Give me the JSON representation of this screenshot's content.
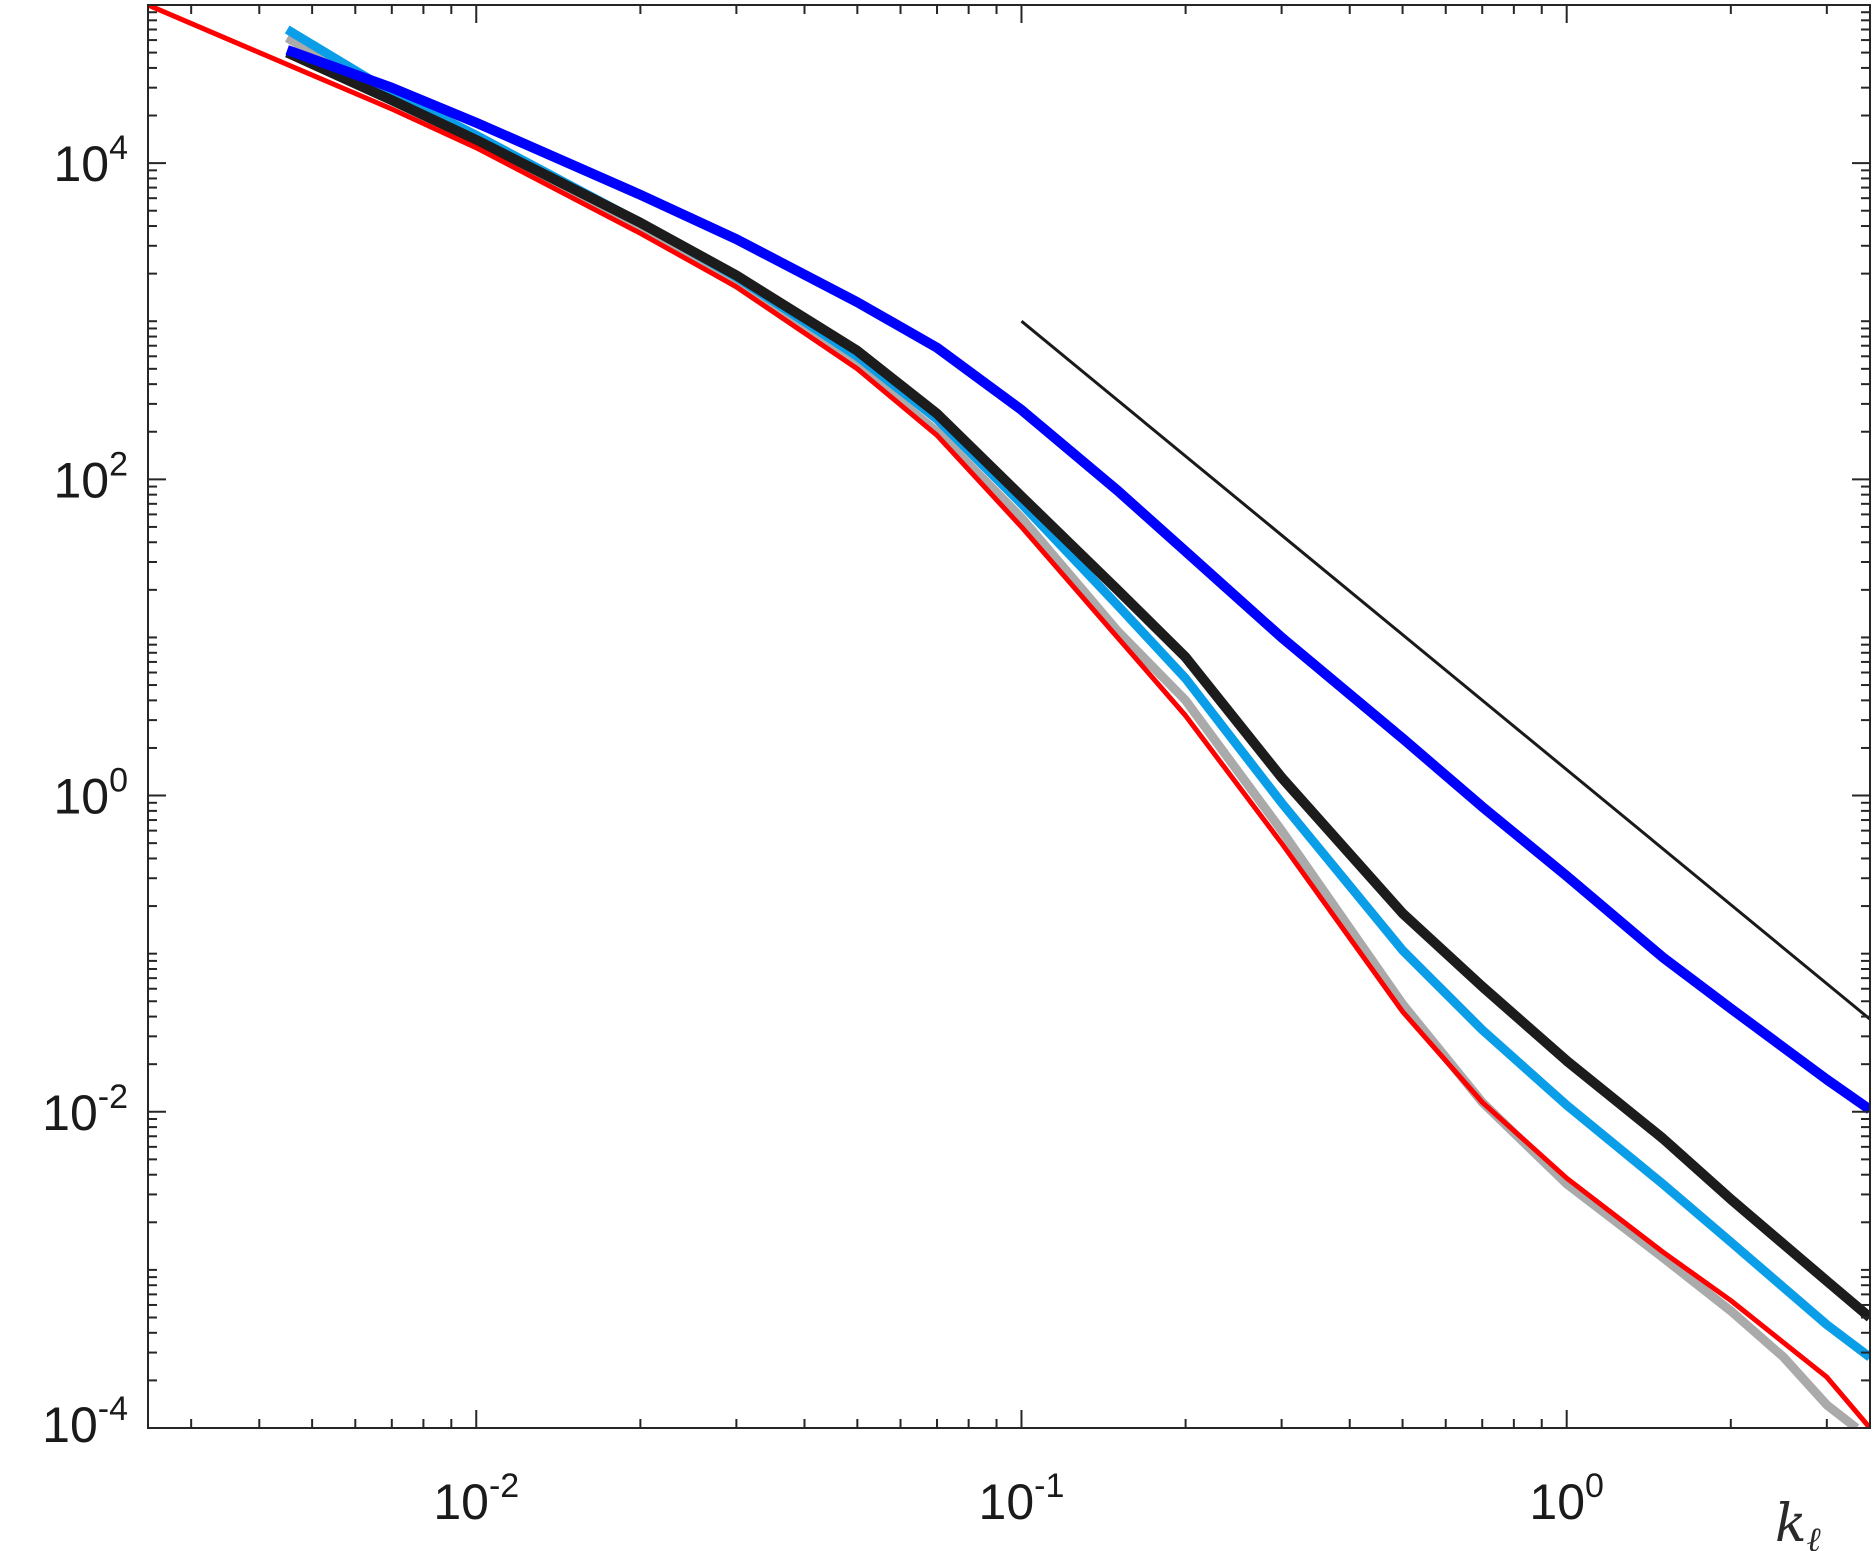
{
  "chart_data": {
    "type": "line",
    "title": "",
    "xlabel": "k",
    "xlabel_subscript": "ℓ",
    "ylabel": "",
    "xscale": "log",
    "yscale": "log",
    "xlim": [
      0.0025,
      3.6
    ],
    "ylim": [
      0.0001,
      100000
    ],
    "grid": false,
    "legend": "none",
    "x_ticks": [
      {
        "value": 0.01,
        "base": "10",
        "exp": "-2"
      },
      {
        "value": 0.1,
        "base": "10",
        "exp": "-1"
      },
      {
        "value": 1,
        "base": "10",
        "exp": "0"
      }
    ],
    "y_ticks": [
      {
        "value": 0.0001,
        "base": "10",
        "exp": "-4"
      },
      {
        "value": 0.01,
        "base": "10",
        "exp": "-2"
      },
      {
        "value": 1,
        "base": "10",
        "exp": "0"
      },
      {
        "value": 100,
        "base": "10",
        "exp": "2"
      },
      {
        "value": 10000,
        "base": "10",
        "exp": "4"
      }
    ],
    "series": [
      {
        "color": "#aaaaaa",
        "width": 9,
        "x": [
          0.0045,
          0.007,
          0.01,
          0.02,
          0.03,
          0.05,
          0.07,
          0.1,
          0.15,
          0.2,
          0.3,
          0.5,
          0.7,
          1.0,
          1.5,
          2.0,
          2.5,
          3.0,
          3.4
        ],
        "y": [
          62000,
          26000,
          14000,
          3800,
          1700,
          520,
          200,
          57,
          11,
          4,
          0.6,
          0.048,
          0.0115,
          0.0035,
          0.0012,
          0.00055,
          0.00028,
          0.00014,
          0.0001
        ]
      },
      {
        "color": "#0a9ee8",
        "width": 9,
        "x": [
          0.0045,
          0.007,
          0.01,
          0.02,
          0.03,
          0.05,
          0.07,
          0.1,
          0.15,
          0.2,
          0.3,
          0.5,
          0.7,
          1.0,
          1.5,
          2.0,
          3.0,
          3.6
        ],
        "y": [
          70000,
          28000,
          15000,
          4200,
          1900,
          600,
          240,
          70,
          16,
          5.5,
          0.9,
          0.105,
          0.033,
          0.011,
          0.0035,
          0.0015,
          0.00045,
          0.00028
        ]
      },
      {
        "color": "#1c1c1c",
        "width": 10,
        "x": [
          0.0045,
          0.007,
          0.01,
          0.02,
          0.03,
          0.05,
          0.07,
          0.1,
          0.15,
          0.2,
          0.3,
          0.5,
          0.7,
          1.0,
          1.5,
          2.0,
          3.0,
          3.6
        ],
        "y": [
          50000,
          25000,
          14000,
          4200,
          1950,
          650,
          260,
          78,
          20,
          7.5,
          1.3,
          0.18,
          0.062,
          0.021,
          0.0068,
          0.0028,
          0.00085,
          0.0005
        ]
      },
      {
        "color": "#0000ff",
        "width": 10,
        "x": [
          0.0045,
          0.007,
          0.01,
          0.02,
          0.03,
          0.05,
          0.07,
          0.1,
          0.15,
          0.2,
          0.3,
          0.5,
          0.7,
          1.0,
          1.5,
          2.0,
          3.0,
          3.6
        ],
        "y": [
          52000,
          30000,
          18000,
          6300,
          3300,
          1320,
          680,
          275,
          85,
          35,
          10,
          2.3,
          0.85,
          0.31,
          0.095,
          0.045,
          0.016,
          0.0103
        ]
      },
      {
        "color": "#ff0000",
        "width": 5,
        "x": [
          0.0025,
          0.004,
          0.007,
          0.01,
          0.02,
          0.03,
          0.05,
          0.07,
          0.1,
          0.15,
          0.2,
          0.3,
          0.5,
          0.7,
          1.0,
          1.5,
          2.0,
          3.0,
          3.6
        ],
        "y": [
          100000,
          50000,
          22000,
          12500,
          3600,
          1650,
          500,
          190,
          50,
          10,
          3.2,
          0.5,
          0.043,
          0.0115,
          0.0038,
          0.0013,
          0.00064,
          0.00021,
          0.0001
        ]
      },
      {
        "color": "#1a1a1a",
        "width": 3,
        "x": [
          0.1,
          3.6
        ],
        "y": [
          1000,
          0.0385
        ]
      }
    ]
  }
}
